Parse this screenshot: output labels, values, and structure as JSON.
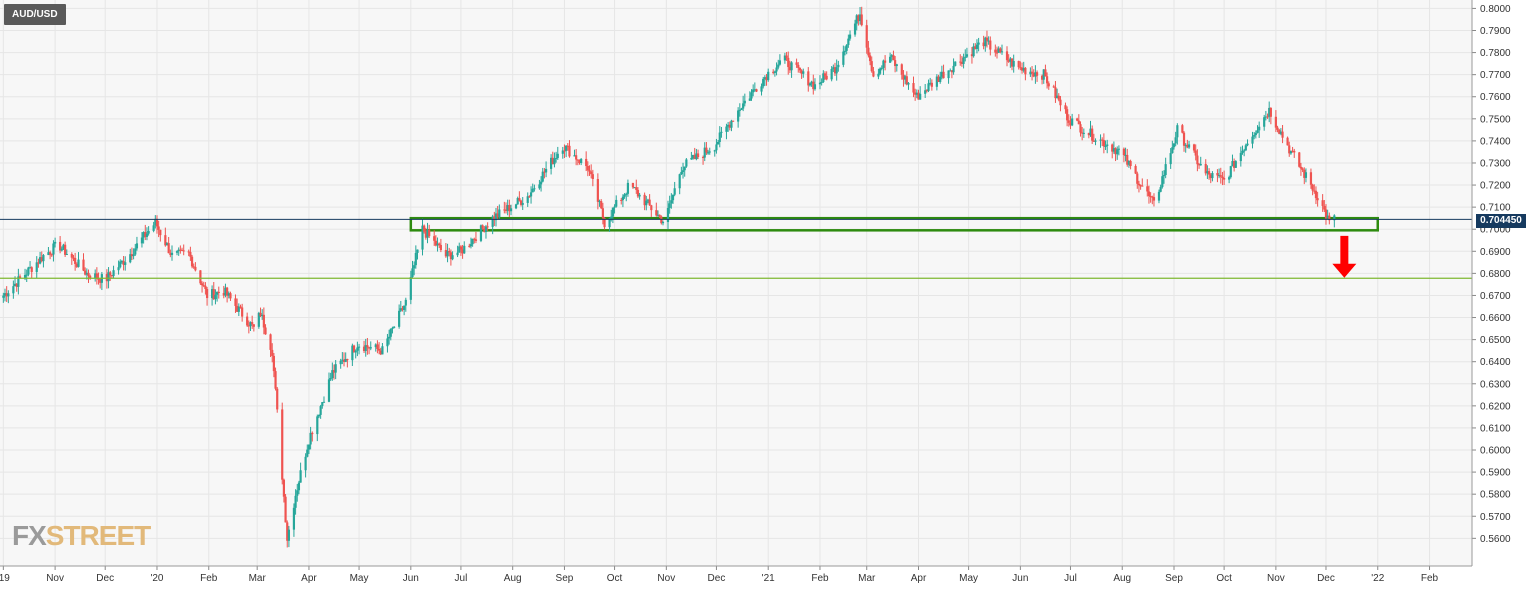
{
  "symbol": "AUD/USD",
  "watermark": {
    "part1": "FX",
    "part2": "STREET"
  },
  "current_price_label": "0.704450",
  "colors": {
    "up": "#26a69a",
    "down": "#ef5350",
    "zone": "#2e8b0f",
    "hline": "#7fb832",
    "current_line": "#163a5f",
    "arrow": "#ff0000",
    "grid": "#e6e6e6",
    "plot_bg": "#f7f7f7"
  },
  "icons": {
    "arrow": "red-down-arrow"
  },
  "chart_data": {
    "type": "candlestick",
    "title": "AUD/USD",
    "y_ticks": [
      "0.8000",
      "0.7900",
      "0.7800",
      "0.7700",
      "0.7600",
      "0.7500",
      "0.7400",
      "0.7300",
      "0.7200",
      "0.7100",
      "0.7000",
      "0.6900",
      "0.6800",
      "0.6700",
      "0.6600",
      "0.6500",
      "0.6400",
      "0.6300",
      "0.6200",
      "0.6100",
      "0.6000",
      "0.5900",
      "0.5800",
      "0.5700",
      "0.5600"
    ],
    "ylim": [
      0.552,
      0.802
    ],
    "x_labels": [
      "'19",
      "Nov",
      "Dec",
      "'20",
      "Feb",
      "Mar",
      "Apr",
      "May",
      "Jun",
      "Jul",
      "Aug",
      "Sep",
      "Oct",
      "Nov",
      "Dec",
      "'21",
      "Feb",
      "Mar",
      "Apr",
      "May",
      "Jun",
      "Jul",
      "Aug",
      "Sep",
      "Oct",
      "Nov",
      "Dec",
      "'22",
      "Feb"
    ],
    "x_dates": [
      "2019-10-01",
      "2019-11-01",
      "2019-12-01",
      "2020-01-01",
      "2020-02-01",
      "2020-03-01",
      "2020-04-01",
      "2020-05-01",
      "2020-06-01",
      "2020-07-01",
      "2020-08-01",
      "2020-09-01",
      "2020-10-01",
      "2020-11-01",
      "2020-12-01",
      "2021-01-01",
      "2021-02-01",
      "2021-03-01",
      "2021-04-01",
      "2021-05-01",
      "2021-06-01",
      "2021-07-01",
      "2021-08-01",
      "2021-09-01",
      "2021-10-01",
      "2021-11-01",
      "2021-12-01",
      "2022-01-01",
      "2022-02-01"
    ],
    "current_price": 0.70445,
    "support_zone": {
      "from_date": "2020-06-01",
      "to_date": "2022-01-01",
      "low": 0.6995,
      "high": 0.705
    },
    "horizontal_line": 0.6778,
    "arrow": {
      "date": "2021-12-12",
      "from_price": 0.697,
      "to_price": 0.678
    },
    "grid": true,
    "legend": "none",
    "series_anchors": [
      [
        "2019-10-01",
        0.67
      ],
      [
        "2019-10-25",
        0.688
      ],
      [
        "2019-11-03",
        0.693
      ],
      [
        "2019-11-20",
        0.68
      ],
      [
        "2019-12-01",
        0.677
      ],
      [
        "2019-12-15",
        0.688
      ],
      [
        "2019-12-31",
        0.703
      ],
      [
        "2020-01-10",
        0.688
      ],
      [
        "2020-01-20",
        0.689
      ],
      [
        "2020-01-31",
        0.67
      ],
      [
        "2020-02-10",
        0.672
      ],
      [
        "2020-02-28",
        0.655
      ],
      [
        "2020-03-03",
        0.662
      ],
      [
        "2020-03-10",
        0.645
      ],
      [
        "2020-03-19",
        0.56
      ],
      [
        "2020-03-24",
        0.58
      ],
      [
        "2020-04-01",
        0.605
      ],
      [
        "2020-04-15",
        0.635
      ],
      [
        "2020-04-30",
        0.648
      ],
      [
        "2020-05-15",
        0.645
      ],
      [
        "2020-05-29",
        0.667
      ],
      [
        "2020-06-08",
        0.7
      ],
      [
        "2020-06-22",
        0.688
      ],
      [
        "2020-07-01",
        0.69
      ],
      [
        "2020-07-20",
        0.705
      ],
      [
        "2020-08-10",
        0.715
      ],
      [
        "2020-08-31",
        0.738
      ],
      [
        "2020-09-15",
        0.728
      ],
      [
        "2020-09-25",
        0.703
      ],
      [
        "2020-10-10",
        0.72
      ],
      [
        "2020-10-31",
        0.703
      ],
      [
        "2020-11-10",
        0.728
      ],
      [
        "2020-11-30",
        0.738
      ],
      [
        "2020-12-15",
        0.755
      ],
      [
        "2020-12-31",
        0.77
      ],
      [
        "2021-01-10",
        0.777
      ],
      [
        "2021-01-29",
        0.765
      ],
      [
        "2021-02-10",
        0.773
      ],
      [
        "2021-02-25",
        0.798
      ],
      [
        "2021-03-05",
        0.77
      ],
      [
        "2021-03-15",
        0.778
      ],
      [
        "2021-03-31",
        0.76
      ],
      [
        "2021-04-15",
        0.77
      ],
      [
        "2021-05-10",
        0.785
      ],
      [
        "2021-05-31",
        0.773
      ],
      [
        "2021-06-15",
        0.77
      ],
      [
        "2021-06-30",
        0.75
      ],
      [
        "2021-07-15",
        0.742
      ],
      [
        "2021-07-31",
        0.735
      ],
      [
        "2021-08-20",
        0.711
      ],
      [
        "2021-09-03",
        0.745
      ],
      [
        "2021-09-20",
        0.725
      ],
      [
        "2021-10-01",
        0.722
      ],
      [
        "2021-10-15",
        0.74
      ],
      [
        "2021-10-28",
        0.754
      ],
      [
        "2021-11-10",
        0.735
      ],
      [
        "2021-11-26",
        0.715
      ],
      [
        "2021-12-03",
        0.703
      ],
      [
        "2021-12-06",
        0.7044
      ]
    ]
  }
}
